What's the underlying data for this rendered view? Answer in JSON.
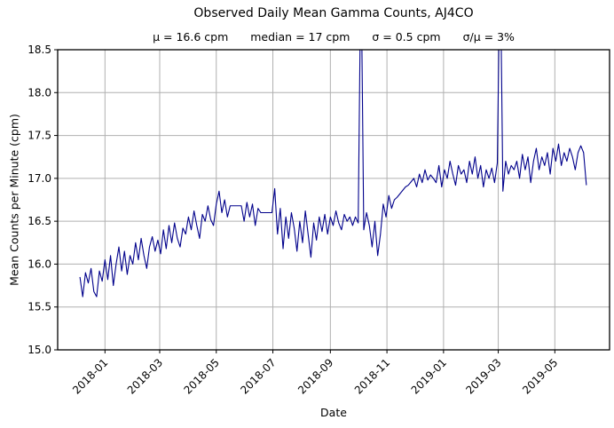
{
  "chart_data": {
    "type": "line",
    "title": "Observed Daily Mean Gamma Counts, AJ4CO",
    "stats": [
      "μ = 16.6 cpm",
      "median = 17 cpm",
      "σ = 0.5 cpm",
      "σ/μ = 3%"
    ],
    "xlabel": "Date",
    "ylabel": "Mean Counts per Minute (cpm)",
    "line_color": "#00008b",
    "grid_color": "#b0b0b0",
    "grid": true,
    "legend": "none",
    "ylim": [
      15.0,
      18.5
    ],
    "y_ticks": [
      "15.0",
      "15.5",
      "16.0",
      "16.5",
      "17.0",
      "17.5",
      "18.0",
      "18.5"
    ],
    "xlim_days": [
      -24,
      571
    ],
    "x_ticks": [
      {
        "label": "2018-01",
        "day": 27
      },
      {
        "label": "2018-03",
        "day": 86
      },
      {
        "label": "2018-05",
        "day": 147
      },
      {
        "label": "2018-07",
        "day": 208
      },
      {
        "label": "2018-09",
        "day": 270
      },
      {
        "label": "2018-11",
        "day": 331
      },
      {
        "label": "2019-01",
        "day": 392
      },
      {
        "label": "2019-03",
        "day": 451
      },
      {
        "label": "2019-05",
        "day": 512
      }
    ],
    "series": {
      "name": "daily-mean-gamma-counts",
      "start_date": "2017-12-05",
      "step_days": 3,
      "values": [
        15.85,
        15.62,
        15.9,
        15.78,
        15.95,
        15.68,
        15.62,
        15.92,
        15.8,
        16.05,
        15.82,
        16.1,
        15.75,
        16.0,
        16.2,
        15.92,
        16.15,
        15.88,
        16.1,
        16.0,
        16.25,
        16.05,
        16.3,
        16.1,
        15.95,
        16.2,
        16.32,
        16.15,
        16.28,
        16.12,
        16.4,
        16.18,
        16.45,
        16.25,
        16.48,
        16.3,
        16.2,
        16.42,
        16.35,
        16.55,
        16.4,
        16.62,
        16.45,
        16.3,
        16.58,
        16.5,
        16.68,
        16.52,
        16.45,
        16.7,
        16.85,
        16.6,
        16.75,
        16.55,
        16.68,
        16.68,
        16.68,
        16.68,
        16.68,
        16.5,
        16.72,
        16.55,
        16.7,
        16.45,
        16.65,
        16.6,
        16.6,
        16.6,
        16.6,
        16.6,
        16.88,
        16.35,
        16.65,
        16.18,
        16.55,
        16.3,
        16.6,
        16.42,
        16.15,
        16.5,
        16.25,
        16.62,
        16.35,
        16.08,
        16.48,
        16.28,
        16.55,
        16.38,
        16.58,
        16.35,
        16.55,
        16.45,
        16.62,
        16.48,
        16.4,
        16.58,
        16.5,
        16.55,
        16.45,
        16.55,
        16.48,
        19.6,
        16.4,
        16.6,
        16.45,
        16.2,
        16.5,
        16.1,
        16.35,
        16.7,
        16.55,
        16.8,
        16.65,
        16.75,
        16.78,
        16.82,
        16.86,
        16.9,
        16.92,
        16.96,
        17.0,
        16.9,
        17.05,
        16.95,
        17.1,
        16.98,
        17.04,
        17.0,
        16.95,
        17.15,
        16.9,
        17.1,
        17.0,
        17.2,
        17.05,
        16.92,
        17.15,
        17.05,
        17.1,
        16.95,
        17.2,
        17.05,
        17.25,
        17.0,
        17.15,
        16.9,
        17.1,
        17.0,
        17.12,
        16.95,
        17.18,
        19.7,
        16.85,
        17.2,
        17.05,
        17.15,
        17.1,
        17.2,
        17.0,
        17.28,
        17.1,
        17.25,
        16.95,
        17.2,
        17.35,
        17.1,
        17.25,
        17.15,
        17.3,
        17.05,
        17.35,
        17.2,
        17.4,
        17.15,
        17.3,
        17.2,
        17.35,
        17.25,
        17.1,
        17.3,
        17.38,
        17.3,
        16.92
      ]
    }
  }
}
